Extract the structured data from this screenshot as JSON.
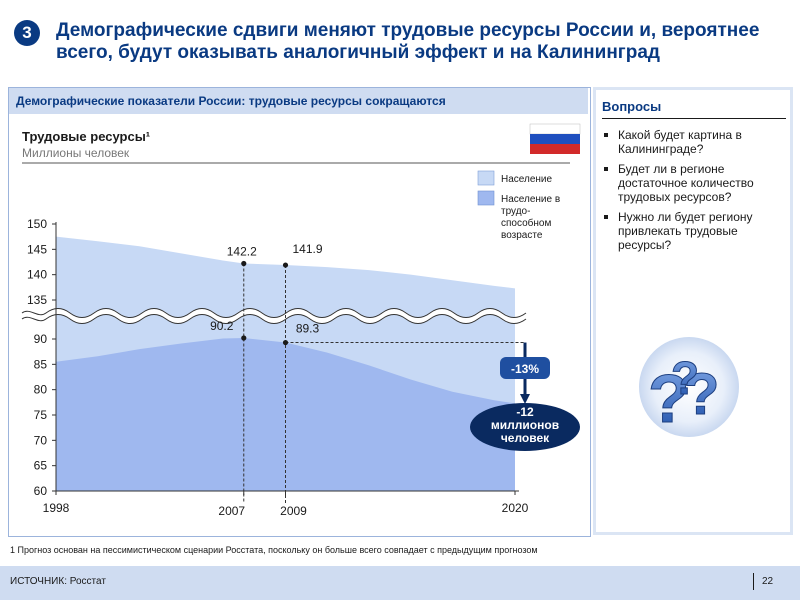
{
  "slide": {
    "number": "3",
    "title": "Демографические сдвиги меняют трудовые ресурсы России и, вероятнее всего, будут оказывать аналогичный эффект и на Калининград"
  },
  "chart_panel": {
    "title": "Демографические показатели России: трудовые ресурсы сокращаются",
    "chart_title": "Трудовые ресурсы¹",
    "chart_subtitle": "Миллионы  человек",
    "flag_icon": "russia-flag-icon"
  },
  "chart_data": {
    "type": "area",
    "title": "Трудовые ресурсы¹",
    "subtitle": "Миллионы  человек",
    "axis_break": true,
    "y_segments": [
      {
        "ylim": [
          60,
          90
        ],
        "ticks": [
          60,
          65,
          70,
          75,
          80,
          85,
          90
        ]
      },
      {
        "ylim": [
          133,
          150
        ],
        "ticks": [
          135,
          140,
          145,
          150
        ]
      }
    ],
    "x_ticks": [
      "1998",
      "2007",
      "2009",
      "2020"
    ],
    "x_range": [
      1998,
      2020
    ],
    "legend_position": "top-right",
    "series": [
      {
        "name": "Население",
        "color": "#c7d9f5",
        "x": [
          1998,
          2000,
          2002,
          2004,
          2006,
          2007,
          2009,
          2011,
          2013,
          2015,
          2017,
          2019,
          2020
        ],
        "values": [
          147.5,
          146.6,
          145.6,
          144.2,
          142.8,
          142.2,
          141.9,
          141.5,
          140.9,
          140.0,
          138.9,
          137.8,
          137.3
        ]
      },
      {
        "name": "Население в трудо-способном возрасте",
        "color": "#9fb8ef",
        "x": [
          1998,
          2000,
          2002,
          2004,
          2006,
          2007,
          2009,
          2011,
          2013,
          2015,
          2017,
          2019,
          2020
        ],
        "values": [
          85.5,
          86.6,
          88.0,
          89.1,
          90.1,
          90.2,
          89.3,
          87.3,
          84.8,
          82.0,
          79.6,
          77.9,
          77.3
        ]
      }
    ],
    "annotations": [
      {
        "x": 2007,
        "y": 142.2,
        "label": "142.2"
      },
      {
        "x": 2009,
        "y": 141.9,
        "label": "141.9"
      },
      {
        "x": 2007,
        "y": 90.2,
        "label": "90.2"
      },
      {
        "x": 2009,
        "y": 89.3,
        "label": "89.3"
      }
    ],
    "change_label": "-13%",
    "change_callout": [
      "-12",
      "миллионов",
      "человек"
    ]
  },
  "questions": {
    "title": "Вопросы",
    "items": [
      "Какой будет картина в Калининграде?",
      "Будет ли в регионе достаточное количество трудовых ресурсов?",
      "Нужно ли будет региону привлекать трудовые ресурсы?"
    ],
    "graphic_icon": "question-marks-icon"
  },
  "footer": {
    "footnote": "1 Прогноз основан на пессимистическом сценарии Росстата, поскольку он больше всего совпадает с предыдущим прогнозом",
    "source": "ИСТОЧНИК: Росстат",
    "page": "22"
  },
  "colors": {
    "title": "#0a3a82",
    "header_band": "#cfdcf1",
    "population": "#c7d9f5",
    "working_age": "#9fb8ef",
    "change_badge": "#1f4fa0",
    "callout": "#0a2a60"
  }
}
